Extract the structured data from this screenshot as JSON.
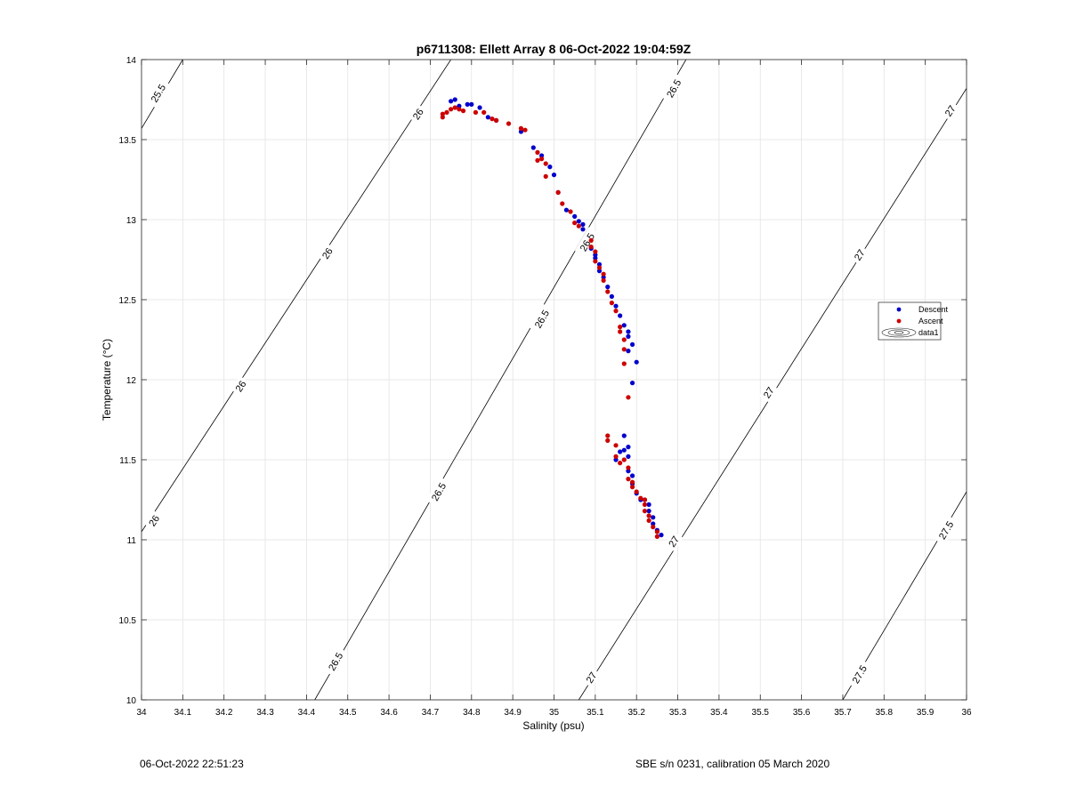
{
  "footer": {
    "left_text": "06-Oct-2022 22:51:23",
    "right_text": "SBE s/n 0231, calibration 05 March 2020"
  },
  "chart_data": {
    "type": "scatter",
    "title": "p6711308: Ellett Array 8 06-Oct-2022 19:04:59Z",
    "xlabel": "Salinity (psu)",
    "ylabel": "Temperature (°C)",
    "xlim": [
      34,
      36
    ],
    "ylim": [
      10,
      14
    ],
    "grid": true,
    "legend_position": "right",
    "x_ticks": [
      34,
      34.1,
      34.2,
      34.3,
      34.4,
      34.5,
      34.6,
      34.7,
      34.8,
      34.9,
      35,
      35.1,
      35.2,
      35.3,
      35.4,
      35.5,
      35.6,
      35.7,
      35.8,
      35.9,
      36
    ],
    "x_tick_labels": [
      "34",
      "34.1",
      "34.2",
      "34.3",
      "34.4",
      "34.5",
      "34.6",
      "34.7",
      "34.8",
      "34.9",
      "35",
      "35.1",
      "35.2",
      "35.3",
      "35.4",
      "35.5",
      "35.6",
      "35.7",
      "35.8",
      "35.9",
      "36"
    ],
    "y_ticks": [
      10,
      10.5,
      11,
      11.5,
      12,
      12.5,
      13,
      13.5,
      14
    ],
    "y_tick_labels": [
      "10",
      "10.5",
      "11",
      "11.5",
      "12",
      "12.5",
      "13",
      "13.5",
      "14"
    ],
    "colors": {
      "descent": "#0000cc",
      "ascent": "#cc0000",
      "contour": "#000000",
      "grid": "#e3e3e3"
    },
    "contours": [
      {
        "level": "25.5",
        "points": [
          [
            34.0,
            13.57
          ],
          [
            34.1,
            14.0
          ]
        ],
        "labels": [
          [
            34.04,
            13.79
          ]
        ]
      },
      {
        "level": "26",
        "points": [
          [
            34.0,
            11.05
          ],
          [
            34.75,
            14.0
          ]
        ],
        "labels": [
          [
            34.03,
            11.12
          ],
          [
            34.24,
            11.96
          ],
          [
            34.45,
            12.79
          ],
          [
            34.67,
            13.66
          ]
        ]
      },
      {
        "level": "26.5",
        "points": [
          [
            34.42,
            10.0
          ],
          [
            35.32,
            14.0
          ]
        ],
        "labels": [
          [
            34.47,
            10.24
          ],
          [
            34.72,
            11.3
          ],
          [
            34.97,
            12.38
          ],
          [
            35.08,
            12.86
          ],
          [
            35.29,
            13.82
          ]
        ]
      },
      {
        "level": "27",
        "points": [
          [
            35.06,
            10.0
          ],
          [
            36.0,
            13.82
          ]
        ],
        "labels": [
          [
            35.09,
            10.14
          ],
          [
            35.29,
            10.99
          ],
          [
            35.52,
            11.92
          ],
          [
            35.74,
            12.78
          ],
          [
            35.96,
            13.68
          ]
        ]
      },
      {
        "level": "27.5",
        "points": [
          [
            35.7,
            10.0
          ],
          [
            36.0,
            11.3
          ]
        ],
        "labels": [
          [
            35.74,
            10.16
          ],
          [
            35.95,
            11.06
          ]
        ]
      }
    ],
    "series": [
      {
        "name": "Descent",
        "points": [
          [
            34.75,
            13.74
          ],
          [
            34.76,
            13.75
          ],
          [
            34.77,
            13.71
          ],
          [
            34.79,
            13.72
          ],
          [
            34.8,
            13.72
          ],
          [
            34.82,
            13.7
          ],
          [
            34.84,
            13.64
          ],
          [
            34.86,
            13.62
          ],
          [
            34.92,
            13.55
          ],
          [
            34.95,
            13.45
          ],
          [
            34.97,
            13.4
          ],
          [
            34.99,
            13.33
          ],
          [
            35.0,
            13.28
          ],
          [
            35.01,
            13.17
          ],
          [
            35.03,
            13.06
          ],
          [
            35.05,
            13.02
          ],
          [
            35.06,
            12.99
          ],
          [
            35.07,
            12.97
          ],
          [
            35.07,
            12.94
          ],
          [
            35.09,
            12.82
          ],
          [
            35.1,
            12.78
          ],
          [
            35.1,
            12.76
          ],
          [
            35.11,
            12.72
          ],
          [
            35.11,
            12.68
          ],
          [
            35.12,
            12.64
          ],
          [
            35.13,
            12.58
          ],
          [
            35.14,
            12.52
          ],
          [
            35.15,
            12.46
          ],
          [
            35.16,
            12.4
          ],
          [
            35.17,
            12.34
          ],
          [
            35.18,
            12.3
          ],
          [
            35.18,
            12.27
          ],
          [
            35.19,
            12.22
          ],
          [
            35.18,
            12.18
          ],
          [
            35.2,
            12.11
          ],
          [
            35.19,
            11.98
          ],
          [
            35.18,
            11.58
          ],
          [
            35.17,
            11.56
          ],
          [
            35.18,
            11.52
          ],
          [
            35.18,
            11.43
          ],
          [
            35.19,
            11.4
          ],
          [
            35.19,
            11.35
          ],
          [
            35.2,
            11.29
          ],
          [
            35.21,
            11.25
          ],
          [
            35.22,
            11.25
          ],
          [
            35.23,
            11.22
          ],
          [
            35.23,
            11.18
          ],
          [
            35.24,
            11.14
          ],
          [
            35.24,
            11.1
          ],
          [
            35.25,
            11.06
          ],
          [
            35.26,
            11.03
          ],
          [
            35.17,
            11.65
          ],
          [
            35.16,
            11.55
          ],
          [
            35.15,
            11.5
          ]
        ]
      },
      {
        "name": "Ascent",
        "points": [
          [
            34.73,
            13.64
          ],
          [
            34.73,
            13.66
          ],
          [
            34.74,
            13.67
          ],
          [
            34.75,
            13.69
          ],
          [
            34.76,
            13.7
          ],
          [
            34.77,
            13.69
          ],
          [
            34.78,
            13.68
          ],
          [
            34.81,
            13.67
          ],
          [
            34.83,
            13.67
          ],
          [
            34.85,
            13.63
          ],
          [
            34.86,
            13.62
          ],
          [
            34.89,
            13.6
          ],
          [
            34.92,
            13.57
          ],
          [
            34.93,
            13.56
          ],
          [
            34.96,
            13.42
          ],
          [
            34.96,
            13.37
          ],
          [
            34.97,
            13.38
          ],
          [
            34.98,
            13.35
          ],
          [
            34.98,
            13.27
          ],
          [
            35.01,
            13.17
          ],
          [
            35.02,
            13.1
          ],
          [
            35.04,
            13.05
          ],
          [
            35.05,
            12.98
          ],
          [
            35.06,
            12.96
          ],
          [
            35.09,
            12.87
          ],
          [
            35.09,
            12.83
          ],
          [
            35.1,
            12.8
          ],
          [
            35.1,
            12.74
          ],
          [
            35.11,
            12.7
          ],
          [
            35.12,
            12.66
          ],
          [
            35.12,
            12.62
          ],
          [
            35.13,
            12.55
          ],
          [
            35.14,
            12.48
          ],
          [
            35.15,
            12.43
          ],
          [
            35.16,
            12.33
          ],
          [
            35.16,
            12.3
          ],
          [
            35.17,
            12.25
          ],
          [
            35.17,
            12.19
          ],
          [
            35.17,
            12.1
          ],
          [
            35.18,
            11.89
          ],
          [
            35.13,
            11.65
          ],
          [
            35.13,
            11.62
          ],
          [
            35.15,
            11.59
          ],
          [
            35.15,
            11.52
          ],
          [
            35.16,
            11.48
          ],
          [
            35.17,
            11.5
          ],
          [
            35.18,
            11.45
          ],
          [
            35.18,
            11.38
          ],
          [
            35.19,
            11.36
          ],
          [
            35.19,
            11.33
          ],
          [
            35.2,
            11.3
          ],
          [
            35.21,
            11.26
          ],
          [
            35.22,
            11.25
          ],
          [
            35.22,
            11.22
          ],
          [
            35.22,
            11.18
          ],
          [
            35.23,
            11.15
          ],
          [
            35.23,
            11.12
          ],
          [
            35.24,
            11.08
          ],
          [
            35.25,
            11.05
          ],
          [
            35.25,
            11.02
          ]
        ]
      },
      {
        "name": "data1",
        "points": []
      }
    ]
  }
}
